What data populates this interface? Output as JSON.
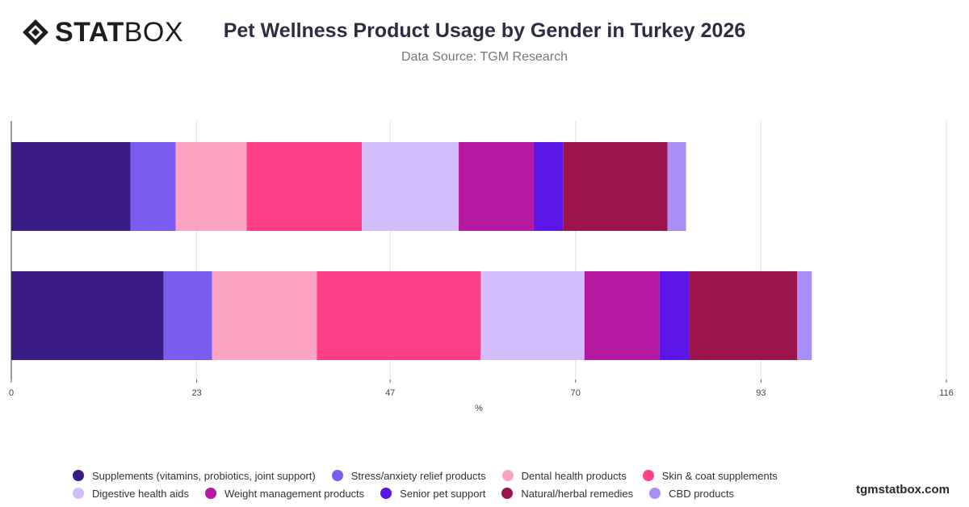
{
  "brand": {
    "logo_bold": "STAT",
    "logo_light": "BOX",
    "footer": "tgmstatbox.com"
  },
  "chart_data": {
    "type": "bar",
    "orientation": "horizontal",
    "stacked": true,
    "title": "Pet Wellness Product Usage by Gender in Turkey 2026",
    "subtitle": "Data Source: TGM Research",
    "xlabel": "%",
    "xlim": [
      0,
      116
    ],
    "xticks": [
      0,
      23,
      47,
      70,
      93,
      116
    ],
    "grid": true,
    "legend_position": "bottom",
    "categories": [
      "",
      ""
    ],
    "series": [
      {
        "name": "Supplements (vitamins, probiotics, joint support)",
        "color": "#3b1c87",
        "values": [
          14.8,
          18.9
        ]
      },
      {
        "name": "Stress/anxiety relief products",
        "color": "#7b5cf0",
        "values": [
          5.6,
          6.0
        ]
      },
      {
        "name": "Dental health products",
        "color": "#fba4c4",
        "values": [
          8.8,
          13.0
        ]
      },
      {
        "name": "Skin & coat supplements",
        "color": "#ff4088",
        "values": [
          14.3,
          20.3
        ]
      },
      {
        "name": "Digestive health aids",
        "color": "#d4bdfc",
        "values": [
          12.0,
          12.9
        ]
      },
      {
        "name": "Weight management products",
        "color": "#b419a0",
        "values": [
          9.3,
          9.3
        ]
      },
      {
        "name": "Senior pet support",
        "color": "#5d16e8",
        "values": [
          3.7,
          3.7
        ]
      },
      {
        "name": "Natural/herbal remedies",
        "color": "#9b154c",
        "values": [
          12.9,
          13.4
        ]
      },
      {
        "name": "CBD products",
        "color": "#a98ef8",
        "values": [
          2.3,
          1.8
        ]
      }
    ]
  }
}
